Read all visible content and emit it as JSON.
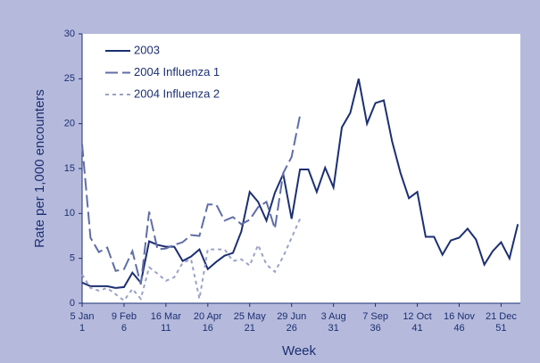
{
  "chart_data": {
    "type": "line",
    "xlabel": "Week",
    "ylabel": "Rate per 1,000 encounters",
    "xlim": [
      1,
      53.3
    ],
    "ylim": [
      0,
      30
    ],
    "yticks": [
      0,
      5,
      10,
      15,
      20,
      25,
      30
    ],
    "xticks": [
      {
        "value": 1,
        "label": "5 Jan"
      },
      {
        "value": 6,
        "label": "9 Feb"
      },
      {
        "value": 11,
        "label": "16 Mar"
      },
      {
        "value": 16,
        "label": "20 Apr"
      },
      {
        "value": 21,
        "label": "25 May"
      },
      {
        "value": 26,
        "label": "29 Jun"
      },
      {
        "value": 31,
        "label": "3 Aug"
      },
      {
        "value": 36,
        "label": "7 Sep"
      },
      {
        "value": 41,
        "label": "12 Oct"
      },
      {
        "value": 46,
        "label": "16 Nov"
      },
      {
        "value": 51,
        "label": "21 Dec"
      }
    ],
    "legend": "upper left",
    "x": [
      1,
      2,
      3,
      4,
      5,
      6,
      7,
      8,
      9,
      10,
      11,
      12,
      13,
      14,
      15,
      16,
      17,
      18,
      19,
      20,
      21,
      22,
      23,
      24,
      25,
      26,
      27,
      28,
      29,
      30,
      31,
      32,
      33,
      34,
      35,
      36,
      37,
      38,
      39,
      40,
      41,
      42,
      43,
      44,
      45,
      46,
      47,
      48,
      49,
      50,
      51,
      52,
      53
    ],
    "series": [
      {
        "name": "2003",
        "color": "#1c2f72",
        "dash": "solid",
        "values": [
          2.3,
          1.9,
          1.9,
          1.9,
          1.7,
          1.8,
          3.4,
          2.3,
          6.9,
          6.5,
          6.3,
          6.3,
          4.7,
          5.2,
          6.0,
          3.8,
          4.6,
          5.3,
          5.6,
          8.0,
          12.4,
          11.3,
          9.2,
          12.3,
          14.4,
          9.4,
          14.9,
          14.9,
          12.4,
          15.1,
          12.9,
          19.6,
          21.2,
          25.0,
          20.0,
          22.3,
          22.6,
          18.0,
          14.5,
          11.7,
          12.4,
          7.4,
          7.4,
          5.4,
          7.0,
          7.3,
          8.3,
          7.1,
          4.3,
          5.8,
          6.8,
          5.0,
          8.8
        ]
      },
      {
        "name": "2004 Influenza 1",
        "color": "#5f6ea6",
        "dash": "dashed",
        "values": [
          17.7,
          7.3,
          5.7,
          6.2,
          3.6,
          3.8,
          5.8,
          2.1,
          10.2,
          6.0,
          6.1,
          6.5,
          6.8,
          7.6,
          7.5,
          11.0,
          11.0,
          9.2,
          9.6,
          8.8,
          9.3,
          10.7,
          11.3,
          8.3,
          14.5,
          16.3,
          20.9,
          null,
          null,
          null,
          null,
          null,
          null,
          null,
          null,
          null,
          null,
          null,
          null,
          null,
          null,
          null,
          null,
          null,
          null,
          null,
          null,
          null,
          null,
          null,
          null,
          null,
          null
        ]
      },
      {
        "name": "2004 Influenza 2",
        "color": "#9aa3c8",
        "dash": "dotted",
        "values": [
          3.2,
          1.7,
          1.4,
          1.7,
          1.0,
          0.3,
          1.6,
          0.5,
          4.0,
          3.3,
          2.5,
          2.9,
          4.5,
          4.9,
          0.5,
          6.0,
          6.0,
          6.0,
          4.7,
          4.9,
          4.2,
          6.5,
          4.3,
          3.5,
          5.2,
          7.3,
          9.4,
          null,
          null,
          null,
          null,
          null,
          null,
          null,
          null,
          null,
          null,
          null,
          null,
          null,
          null,
          null,
          null,
          null,
          null,
          null,
          null,
          null,
          null,
          null,
          null,
          null,
          null
        ]
      }
    ]
  }
}
